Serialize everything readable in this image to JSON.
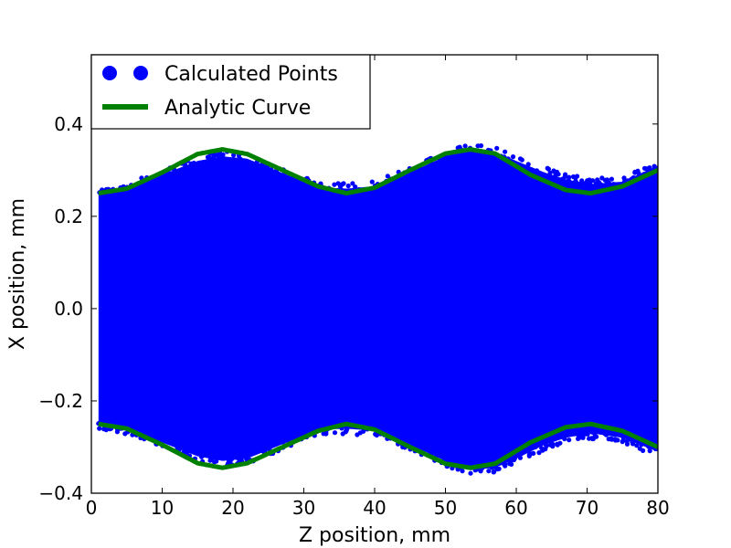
{
  "chart_data": {
    "type": "scatter",
    "title": "",
    "xlabel": "Z position, mm",
    "ylabel": "X position, mm",
    "xlim": [
      0,
      80
    ],
    "ylim": [
      -0.4,
      0.55
    ],
    "xticks": [
      0,
      10,
      20,
      30,
      40,
      50,
      60,
      70,
      80
    ],
    "xtick_labels": [
      "0",
      "10",
      "20",
      "30",
      "40",
      "50",
      "60",
      "70",
      "80"
    ],
    "yticks": [
      -0.4,
      -0.2,
      0.0,
      0.2,
      0.4
    ],
    "ytick_labels": [
      "−0.4",
      "−0.2",
      "0.0",
      "0.2",
      "0.4"
    ],
    "grid": false,
    "legend_position": "top-left",
    "series": [
      {
        "name": "Calculated Points",
        "kind": "scatter",
        "color": "#0000ff",
        "x_range": [
          1,
          80
        ],
        "envelope_x": [
          1,
          5,
          10,
          15,
          18.5,
          22,
          26,
          30,
          33,
          36,
          40,
          45,
          50,
          53.5,
          57,
          60,
          64,
          67,
          70.5,
          75,
          80
        ],
        "envelope_upper": [
          0.25,
          0.26,
          0.29,
          0.32,
          0.33,
          0.325,
          0.3,
          0.275,
          0.262,
          0.26,
          0.265,
          0.295,
          0.33,
          0.345,
          0.34,
          0.32,
          0.295,
          0.28,
          0.27,
          0.275,
          0.31
        ],
        "envelope_lower": [
          -0.25,
          -0.26,
          -0.29,
          -0.32,
          -0.33,
          -0.325,
          -0.3,
          -0.275,
          -0.262,
          -0.26,
          -0.265,
          -0.295,
          -0.33,
          -0.35,
          -0.345,
          -0.325,
          -0.295,
          -0.28,
          -0.27,
          -0.28,
          -0.31
        ]
      },
      {
        "name": "Analytic Curve",
        "kind": "line",
        "color": "#008000",
        "x": [
          1,
          5,
          10,
          15,
          18.5,
          22,
          27,
          32,
          36,
          40,
          45,
          50,
          53.5,
          57,
          62,
          67,
          70.5,
          75,
          80
        ],
        "upper": [
          0.25,
          0.26,
          0.295,
          0.335,
          0.345,
          0.335,
          0.3,
          0.265,
          0.25,
          0.262,
          0.3,
          0.336,
          0.345,
          0.336,
          0.29,
          0.257,
          0.25,
          0.265,
          0.3
        ],
        "lower": [
          -0.25,
          -0.26,
          -0.295,
          -0.335,
          -0.345,
          -0.335,
          -0.3,
          -0.265,
          -0.25,
          -0.262,
          -0.3,
          -0.336,
          -0.345,
          -0.336,
          -0.29,
          -0.257,
          -0.25,
          -0.265,
          -0.3
        ]
      }
    ]
  }
}
